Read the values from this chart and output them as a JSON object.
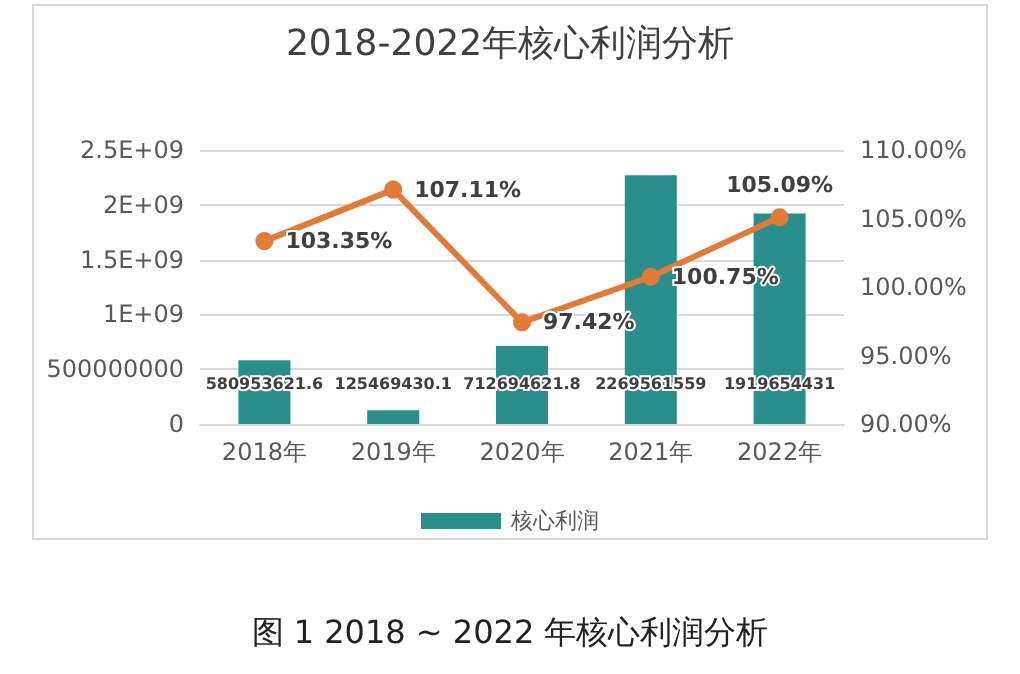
{
  "chart_data": {
    "type": "bar",
    "title": "2018-2022年核心利润分析",
    "categories": [
      "2018年",
      "2019年",
      "2020年",
      "2021年",
      "2022年"
    ],
    "series": [
      {
        "name": "核心利润",
        "color": "#2a8f8c",
        "values": [
          580953621.6,
          125469430.1,
          712694621.8,
          2269561559,
          1919654431
        ],
        "value_labels": [
          "580953621.6",
          "125469430.1",
          "712694621.8",
          "2269561559",
          "1919654431"
        ]
      },
      {
        "type": "line",
        "axis": "y2",
        "color": "#e07b39",
        "marker": "circle",
        "values": [
          103.35,
          107.11,
          97.42,
          100.75,
          105.09
        ],
        "value_labels": [
          "103.35%",
          "107.11%",
          "97.42%",
          "100.75%",
          "105.09%"
        ]
      }
    ],
    "ylim": [
      0,
      2500000000
    ],
    "yticks": [
      0,
      500000000,
      {
        "value": 1000000000,
        "label": "1E+09"
      },
      {
        "value": 1500000000,
        "label": "1.5E+09"
      },
      {
        "value": 2000000000,
        "label": "2E+09"
      },
      {
        "value": 2500000000,
        "label": "2.5E+09"
      }
    ],
    "y2lim": [
      90,
      110
    ],
    "y2ticks": [
      {
        "value": 90,
        "label": "90.00%"
      },
      {
        "value": 95,
        "label": "95.00%"
      },
      {
        "value": 100,
        "label": "100.00%"
      },
      {
        "value": 105,
        "label": "105.00%"
      },
      {
        "value": 110,
        "label": "110.00%"
      }
    ],
    "grid": "y",
    "legend": "bottom",
    "annotations": [
      "图 1 2018 ~ 2022 年核心利润分析"
    ]
  }
}
